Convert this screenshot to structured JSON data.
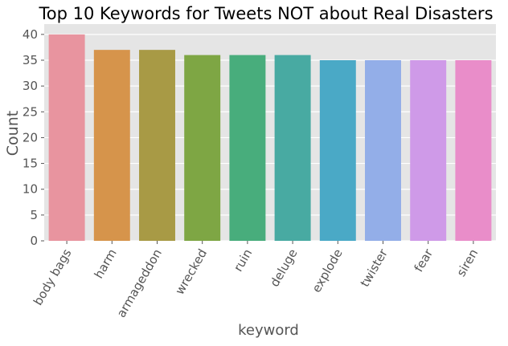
{
  "chart_data": {
    "type": "bar",
    "title": "Top 10 Keywords for Tweets NOT about Real Disasters",
    "xlabel": "keyword",
    "ylabel": "Count",
    "categories": [
      "body bags",
      "harm",
      "armageddon",
      "wrecked",
      "ruin",
      "deluge",
      "explode",
      "twister",
      "fear",
      "siren"
    ],
    "values": [
      40,
      37,
      37,
      36,
      36,
      36,
      35,
      35,
      35,
      35
    ],
    "ylim": [
      0,
      42
    ],
    "yticks": [
      "0",
      "5",
      "10",
      "15",
      "20",
      "25",
      "30",
      "35",
      "40"
    ],
    "grid": true,
    "legend": "none",
    "colors": [
      "#e8949f",
      "#d6944b",
      "#a89a45",
      "#7ea644",
      "#48ad7c",
      "#48aaa2",
      "#4aa9c6",
      "#93aee8",
      "#cf9ae8",
      "#e98dc9"
    ],
    "background": "#e5e5e5"
  }
}
